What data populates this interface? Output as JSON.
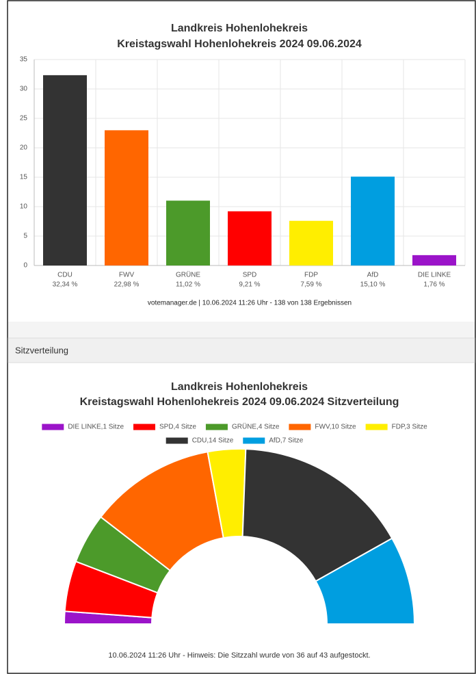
{
  "section_title": "Sitzverteilung",
  "chart_data": [
    {
      "type": "bar",
      "title": "Landkreis Hohenlohekreis",
      "subtitle": "Kreistagswahl Hohenlohekreis 2024 09.06.2024",
      "categories": [
        "CDU",
        "FWV",
        "GRÜNE",
        "SPD",
        "FDP",
        "AfD",
        "DIE LINKE"
      ],
      "values": [
        32.34,
        22.98,
        11.02,
        9.21,
        7.59,
        15.1,
        1.76
      ],
      "value_labels": [
        "32,34 %",
        "22,98 %",
        "11,02 %",
        "9,21 %",
        "7,59 %",
        "15,10 %",
        "1,76 %"
      ],
      "colors": [
        "#333333",
        "#ff6600",
        "#4c9a2a",
        "#ff0000",
        "#ffee00",
        "#009ee0",
        "#9b14c9"
      ],
      "ylim": [
        0,
        35
      ],
      "yticks": [
        0,
        5,
        10,
        15,
        20,
        25,
        30,
        35
      ],
      "grid": true,
      "source": "votemanager.de | 10.06.2024 11:26 Uhr - 138 von 138 Ergebnissen"
    },
    {
      "type": "semi_donut",
      "title": "Landkreis Hohenlohekreis",
      "subtitle": "Kreistagswahl Hohenlohekreis 2024 09.06.2024 Sitzverteilung",
      "labels": [
        "DIE LINKE,1 Sitze",
        "SPD,4 Sitze",
        "GRÜNE,4 Sitze",
        "FWV,10 Sitze",
        "FDP,3 Sitze",
        "CDU,14 Sitze",
        "AfD,7 Sitze"
      ],
      "values": [
        1,
        4,
        4,
        10,
        3,
        14,
        7
      ],
      "colors": [
        "#9b14c9",
        "#ff0000",
        "#4c9a2a",
        "#ff6600",
        "#ffee00",
        "#333333",
        "#009ee0"
      ],
      "note": "10.06.2024 11:26 Uhr - Hinweis: Die Sitzzahl wurde von 36 auf 43 aufgestockt."
    }
  ]
}
